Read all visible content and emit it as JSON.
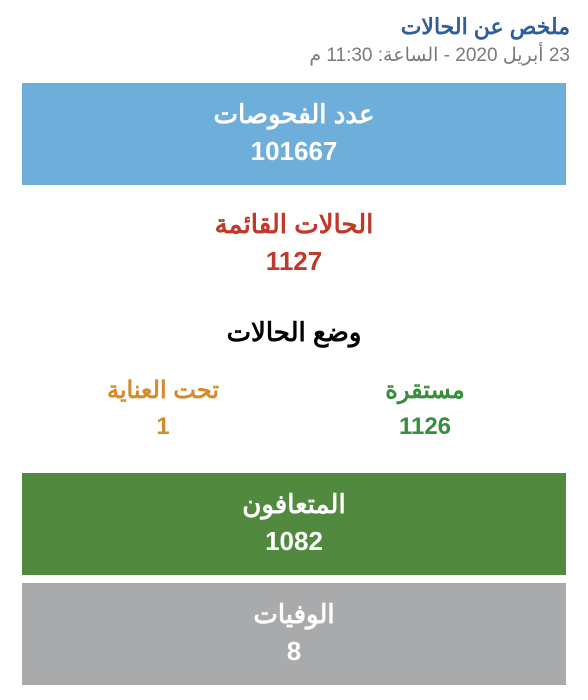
{
  "header": {
    "title": "ملخص عن الحالات",
    "title_color": "#2f5f9a",
    "timestamp": "23 أبريل 2020 - الساعة: 11:30 م",
    "timestamp_color": "#7a7a7a"
  },
  "tests": {
    "label": "عدد الفحوصات",
    "value": "101667",
    "bg": "#6eaedb",
    "fg": "#ffffff"
  },
  "active": {
    "label": "الحالات القائمة",
    "value": "1127",
    "bg": "#ffffff",
    "fg": "#c0392b"
  },
  "status": {
    "title": "وضع الحالات",
    "stable": {
      "label": "مستقرة",
      "value": "1126",
      "color": "#388e3c"
    },
    "critical": {
      "label": "تحت العناية",
      "value": "1",
      "color": "#d68a2e"
    }
  },
  "recovered": {
    "label": "المتعافون",
    "value": "1082",
    "bg": "#518a3e",
    "fg": "#ffffff"
  },
  "deaths": {
    "label": "الوفيات",
    "value": "8",
    "bg": "#a9aaac",
    "fg": "#ffffff"
  }
}
